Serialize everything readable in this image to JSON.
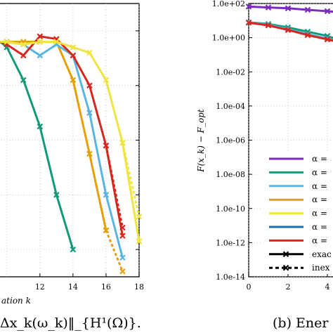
{
  "chart_data": [
    {
      "type": "line",
      "xlabel": "ation k",
      "ylabel": "",
      "xlim": [
        9.5,
        18
      ],
      "ylim": [
        0,
        1
      ],
      "x_ticks": [
        "12",
        "14",
        "16",
        "18"
      ],
      "caption": "Δx_k(ω_k)‖_{H¹(Ω)}.",
      "series": [
        {
          "color": "#e69f00",
          "style": "solid",
          "x": [
            9.6,
            10,
            11,
            12,
            13,
            14,
            15,
            16
          ],
          "y": [
            0.86,
            0.86,
            0.86,
            0.86,
            0.86,
            0.72,
            0.45,
            0.17
          ]
        },
        {
          "color": "#e69f00",
          "style": "dotted",
          "x": [
            16,
            17
          ],
          "y": [
            0.17,
            0.02
          ]
        },
        {
          "color": "#0f9b78",
          "style": "solid",
          "x": [
            9.6,
            10,
            11,
            12,
            13,
            14
          ],
          "y": [
            0.86,
            0.84,
            0.72,
            0.55,
            0.3,
            0.1
          ]
        },
        {
          "color": "#5ab4e0",
          "style": "solid",
          "x": [
            9.6,
            10,
            11,
            12,
            13,
            14,
            15,
            16,
            17
          ],
          "y": [
            0.86,
            0.86,
            0.85,
            0.81,
            0.85,
            0.81,
            0.6,
            0.3,
            0.07
          ]
        },
        {
          "color": "#d7261e",
          "style": "solid",
          "x": [
            9.6,
            10,
            11,
            12,
            13,
            14,
            15,
            16,
            17
          ],
          "y": [
            0.86,
            0.85,
            0.81,
            0.88,
            0.87,
            0.81,
            0.7,
            0.48,
            0.15
          ]
        },
        {
          "color": "#d7261e",
          "style": "dotted",
          "x": [
            16,
            17
          ],
          "y": [
            0.48,
            0.18
          ]
        },
        {
          "color": "#f0e442",
          "style": "solid",
          "x": [
            9.6,
            10,
            11,
            12,
            13,
            14,
            15,
            16,
            17,
            18
          ],
          "y": [
            0.86,
            0.86,
            0.85,
            0.86,
            0.86,
            0.84,
            0.82,
            0.72,
            0.49,
            0.13
          ]
        },
        {
          "color": "#f0e442",
          "style": "dotted",
          "x": [
            17,
            18
          ],
          "y": [
            0.49,
            0.22
          ]
        }
      ]
    },
    {
      "type": "line",
      "title": "",
      "xlabel": "",
      "ylabel": "F(x_k) − F_opt",
      "xlim": [
        0,
        5.6
      ],
      "ylim": [
        -14,
        2
      ],
      "y_scale": "log",
      "x_ticks": [
        "0",
        "2",
        "4"
      ],
      "y_ticks": [
        "1.0e+02",
        "1.0e+00",
        "1.0e-02",
        "1.0e-04",
        "1.0e-06",
        "1.0e-08",
        "1.0e-10",
        "1.0e-12",
        "1.0e-14"
      ],
      "caption": "(b) Ener",
      "legend_position": "bottom-right",
      "legend": [
        {
          "label": "α =",
          "color": "#7b2bbf",
          "style": "solid"
        },
        {
          "label": "α =",
          "color": "#0f9b78",
          "style": "solid"
        },
        {
          "label": "α =",
          "color": "#5ab4e0",
          "style": "solid"
        },
        {
          "label": "α =",
          "color": "#e69f00",
          "style": "solid"
        },
        {
          "label": "α =",
          "color": "#f0e442",
          "style": "solid"
        },
        {
          "label": "α =",
          "color": "#1c6ca8",
          "style": "solid"
        },
        {
          "label": "α =",
          "color": "#d7261e",
          "style": "solid"
        },
        {
          "label": "exac",
          "color": "#000000",
          "style": "solid"
        },
        {
          "label": "inex",
          "color": "#000000",
          "style": "dotted"
        }
      ],
      "series": [
        {
          "color": "#7b2bbf",
          "x": [
            0,
            1,
            2,
            3,
            4,
            5,
            5.6
          ],
          "y": [
            1.82,
            1.77,
            1.72,
            1.63,
            1.55,
            1.45,
            1.35
          ]
        },
        {
          "color": "#0f9b78",
          "x": [
            0,
            1,
            2,
            3,
            4,
            5,
            5.6
          ],
          "y": [
            0.9,
            0.8,
            0.6,
            0.35,
            0.1,
            -0.3,
            -0.7
          ]
        },
        {
          "color": "#5ab4e0",
          "x": [
            0,
            1,
            2,
            3,
            4,
            5,
            5.6
          ],
          "y": [
            0.9,
            0.75,
            0.5,
            0.2,
            -0.05,
            -0.3,
            -0.5
          ]
        },
        {
          "color": "#d7261e",
          "x": [
            0,
            1,
            2,
            3,
            4,
            5,
            5.6
          ],
          "y": [
            0.88,
            0.72,
            0.45,
            0.15,
            -0.1,
            -0.35,
            -0.6
          ]
        }
      ]
    }
  ]
}
